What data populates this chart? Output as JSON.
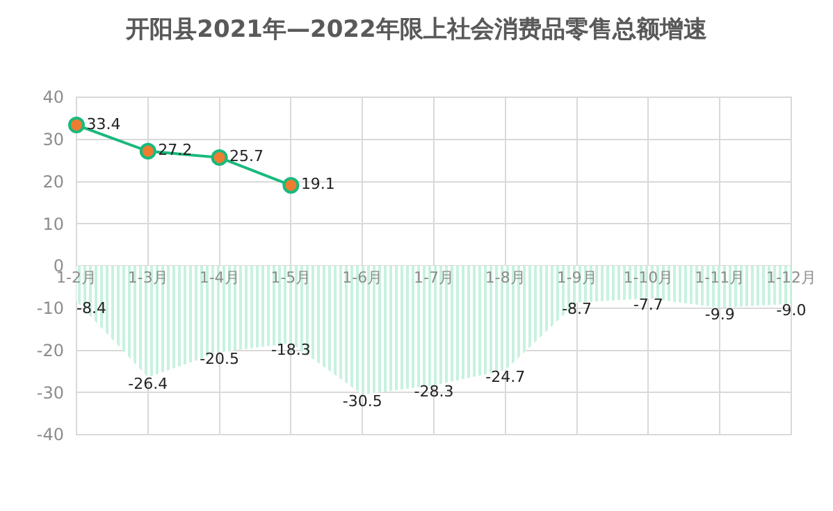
{
  "chart_data": {
    "type": "line",
    "title": "开阳县2021年—2022年限上社会消费品零售总额增速",
    "categories": [
      "1-2月",
      "1-3月",
      "1-4月",
      "1-5月",
      "1-6月",
      "1-7月",
      "1-8月",
      "1-9月",
      "1-10月",
      "1-11月",
      "1-12月"
    ],
    "series": [
      {
        "type": "area",
        "color": "#8fe6c0",
        "marker": "none",
        "values": [
          -8.4,
          -26.4,
          -20.5,
          -18.3,
          -30.5,
          -28.3,
          -24.7,
          -8.7,
          -7.7,
          -9.9,
          -9.0
        ],
        "value_labels": [
          "-8.4",
          "-26.4",
          "-20.5",
          "-18.3",
          "-30.5",
          "-28.3",
          "-24.7",
          "-8.7",
          "-7.7",
          "-9.9",
          "-9.0"
        ]
      },
      {
        "color": "#19b97d",
        "marker": "circle",
        "values": [
          33.4,
          27.2,
          25.7,
          19.1,
          null,
          null,
          null,
          null,
          null,
          null,
          null
        ]
      }
    ],
    "ylim": [
      -40,
      40
    ],
    "yticks": [
      -40,
      -30,
      -20,
      -10,
      0,
      10,
      20,
      30,
      40
    ],
    "grid": true,
    "legend": false,
    "data_labels": true
  }
}
